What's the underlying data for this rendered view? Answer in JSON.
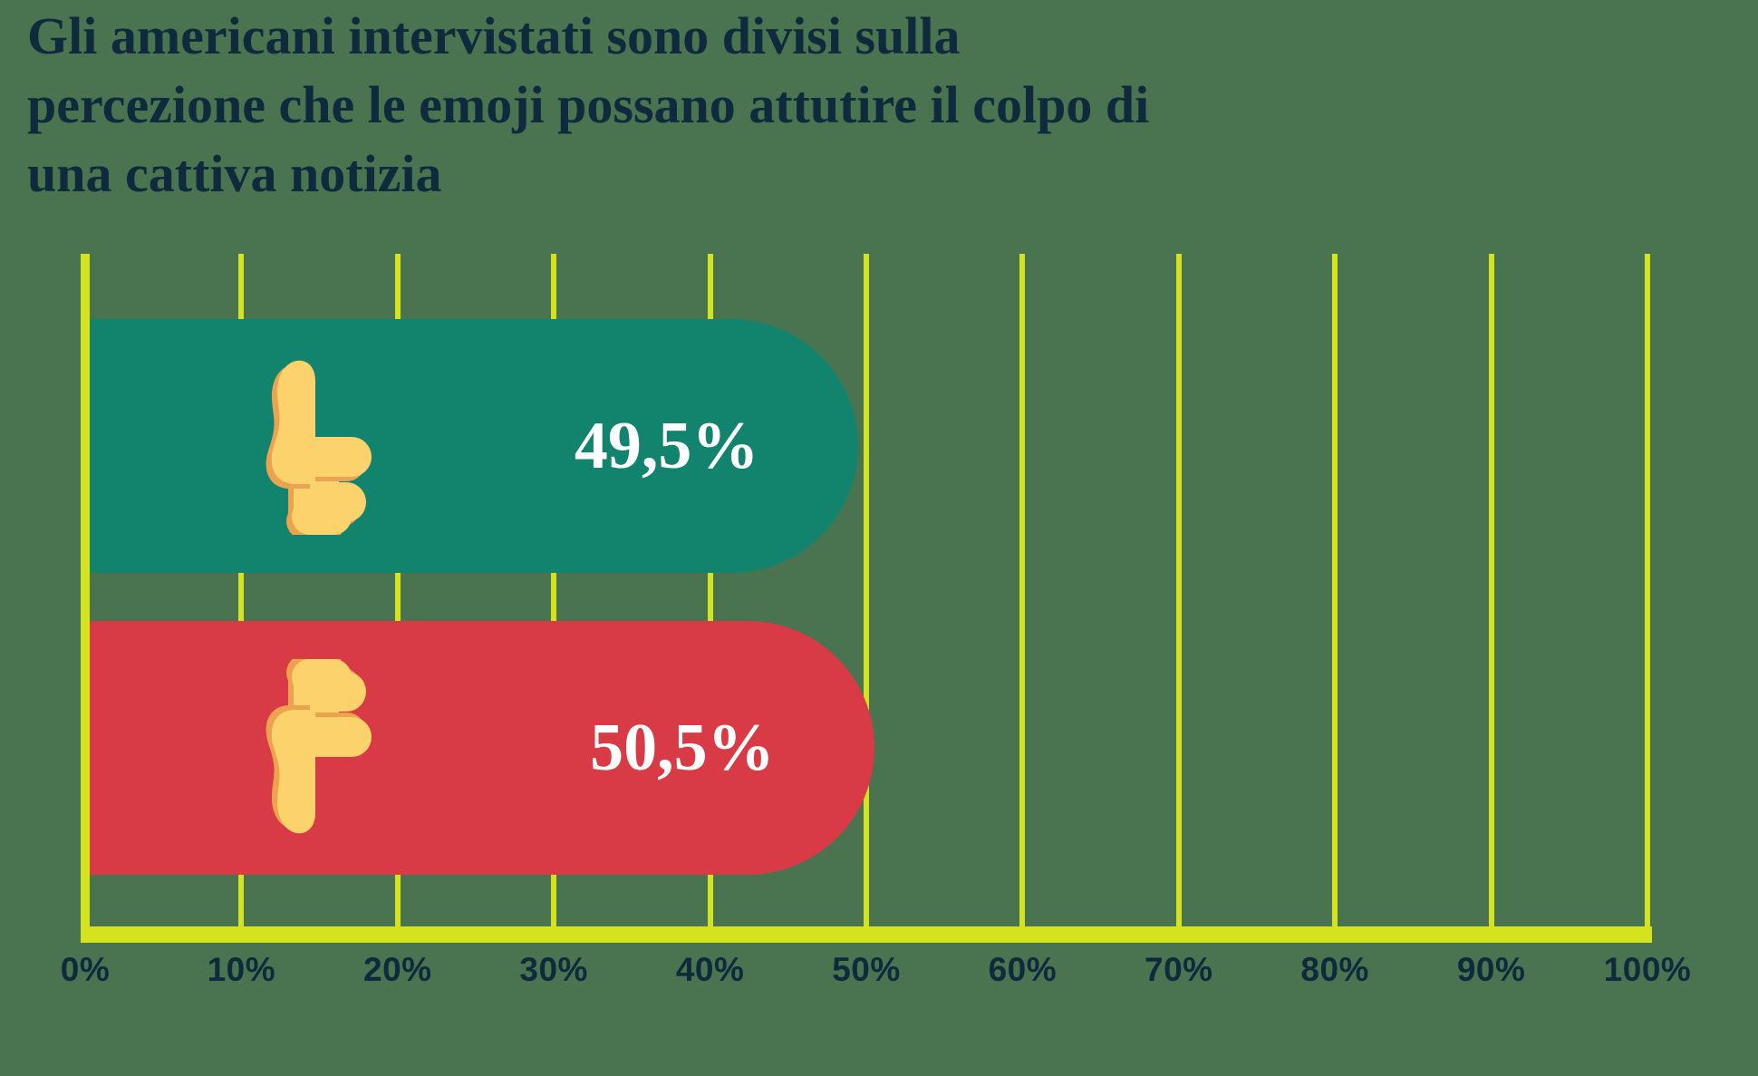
{
  "title": {
    "lines": [
      "Gli americani intervistati sono divisi sulla",
      "percezione che le emoji possano attutire il colpo di",
      "una cattiva notizia"
    ]
  },
  "chart_data": {
    "type": "bar",
    "orientation": "horizontal",
    "title": "Gli americani intervistati sono divisi sulla percezione che le emoji possano attutire il colpo di una cattiva notizia",
    "x_axis": {
      "min": 0,
      "max": 100,
      "tick_labels": [
        "0%",
        "10%",
        "20%",
        "30%",
        "40%",
        "50%",
        "60%",
        "70%",
        "80%",
        "90%",
        "100%"
      ],
      "grid": true
    },
    "bars": [
      {
        "icon": "thumbs-up-icon",
        "value": 49.5,
        "value_label": "49,5%",
        "color_key": "bar_positive"
      },
      {
        "icon": "thumbs-down-icon",
        "value": 50.5,
        "value_label": "50,5%",
        "color_key": "bar_negative"
      }
    ],
    "legend": null
  },
  "colors": {
    "background": "#4A7350",
    "bar_positive": "#12846E",
    "bar_negative": "#D83B45",
    "grid": "#D5E31E",
    "text_dark": "#102A3D",
    "value_text": "#FFFFFF",
    "emoji_fill": "#FBD26B",
    "emoji_shadow": "#ECA24F"
  }
}
